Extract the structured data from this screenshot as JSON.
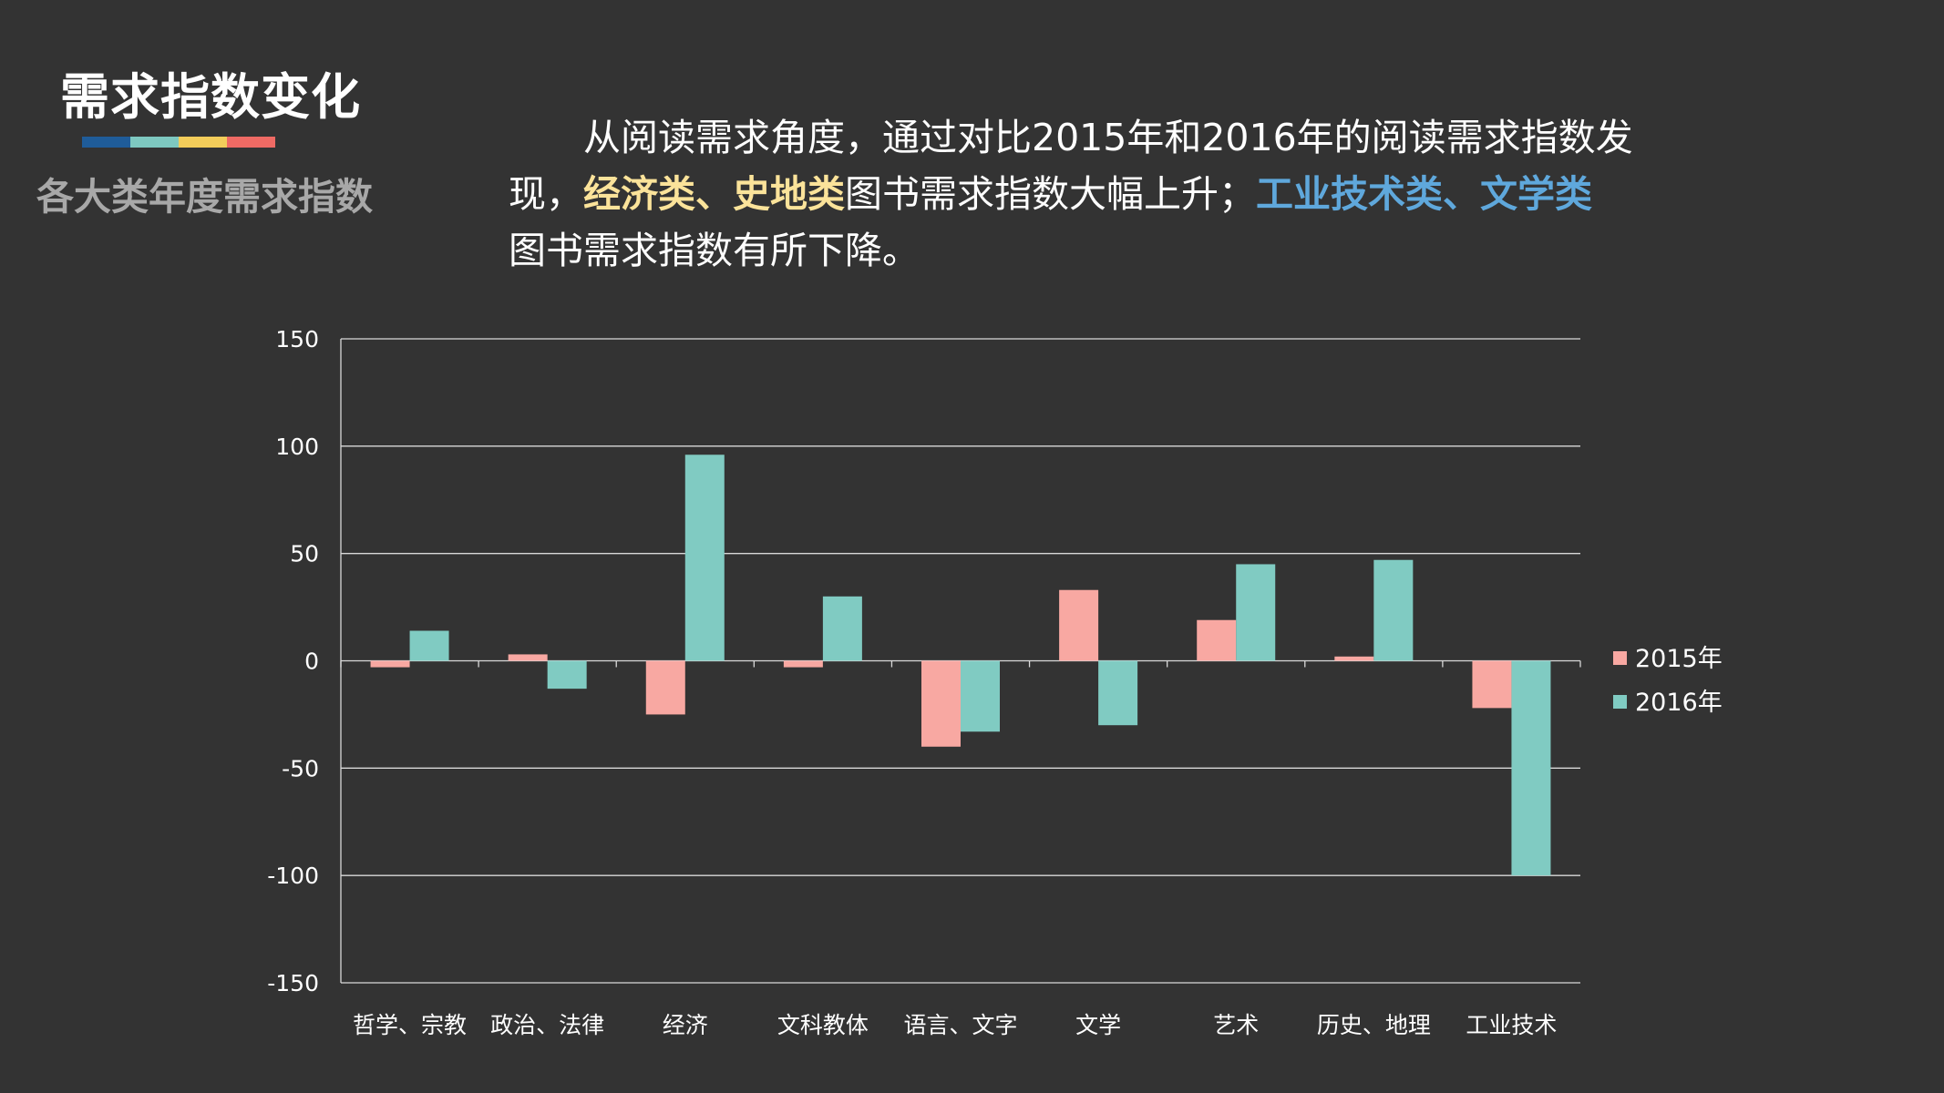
{
  "header": {
    "title": "需求指数变化",
    "subtitle": "各大类年度需求指数",
    "bar_colors": [
      "#1f5c99",
      "#7ec8c0",
      "#f3cd5a",
      "#ef6a64"
    ]
  },
  "description": {
    "line1": "从阅读需求角度，通过对比2015年和2016年的阅读需求指数发",
    "line2_a": "现，",
    "line2_b": "经济类、史地类",
    "line2_c": "图书需求指数大幅上升；",
    "line2_d": "工业技术类、文学类",
    "line3": "图书需求指数有所下降。",
    "highlight_up_color": "#fbe39a",
    "highlight_down_color": "#5fa8dc"
  },
  "chart_data": {
    "type": "bar",
    "categories": [
      "哲学、宗教",
      "政治、法律",
      "经济",
      "文科教体",
      "语言、文字",
      "文学",
      "艺术",
      "历史、地理",
      "工业技术"
    ],
    "series": [
      {
        "name": "2015年",
        "color": "#f8a8a2",
        "values": [
          -3,
          3,
          -25,
          -3,
          -40,
          33,
          19,
          2,
          -22
        ]
      },
      {
        "name": "2016年",
        "color": "#80cbc2",
        "values": [
          14,
          -13,
          96,
          30,
          -33,
          -30,
          45,
          47,
          -100
        ]
      }
    ],
    "ylim": [
      -150,
      150
    ],
    "yticks": [
      150,
      100,
      50,
      0,
      -50,
      -100,
      -150
    ],
    "grid": true,
    "legend_position": "right"
  }
}
